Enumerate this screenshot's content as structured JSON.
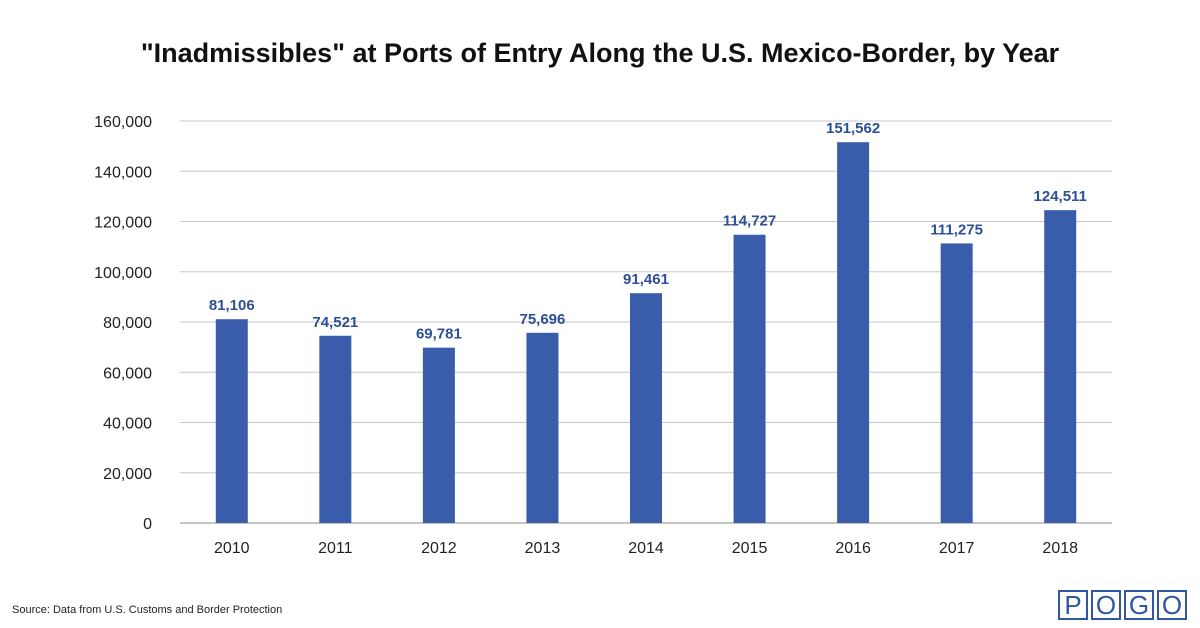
{
  "chart_data": {
    "type": "bar",
    "title": "\"Inadmissibles\" at Ports of Entry Along the U.S. Mexico-Border, by Year",
    "categories": [
      "2010",
      "2011",
      "2012",
      "2013",
      "2014",
      "2015",
      "2016",
      "2017",
      "2018"
    ],
    "values": [
      81106,
      74521,
      69781,
      75696,
      91461,
      114727,
      151562,
      111275,
      124511
    ],
    "data_labels": [
      "81,106",
      "74,521",
      "69,781",
      "75,696",
      "91,461",
      "114,727",
      "151,562",
      "111,275",
      "124,511"
    ],
    "yticks": [
      0,
      20000,
      40000,
      60000,
      80000,
      100000,
      120000,
      140000,
      160000
    ],
    "ytick_labels": [
      "0",
      "20,000",
      "40,000",
      "60,000",
      "80,000",
      "100,000",
      "120,000",
      "140,000",
      "160,000"
    ],
    "ylim": [
      0,
      160000
    ],
    "xlabel": "",
    "ylabel": "",
    "grid": true,
    "bar_color": "#3a5dab",
    "label_color": "#2d4f95"
  },
  "source": "Source: Data from U.S. Customs and Border Protection",
  "logo": {
    "letters": [
      "P",
      "O",
      "G",
      "O"
    ],
    "color": "#2f57a6"
  }
}
